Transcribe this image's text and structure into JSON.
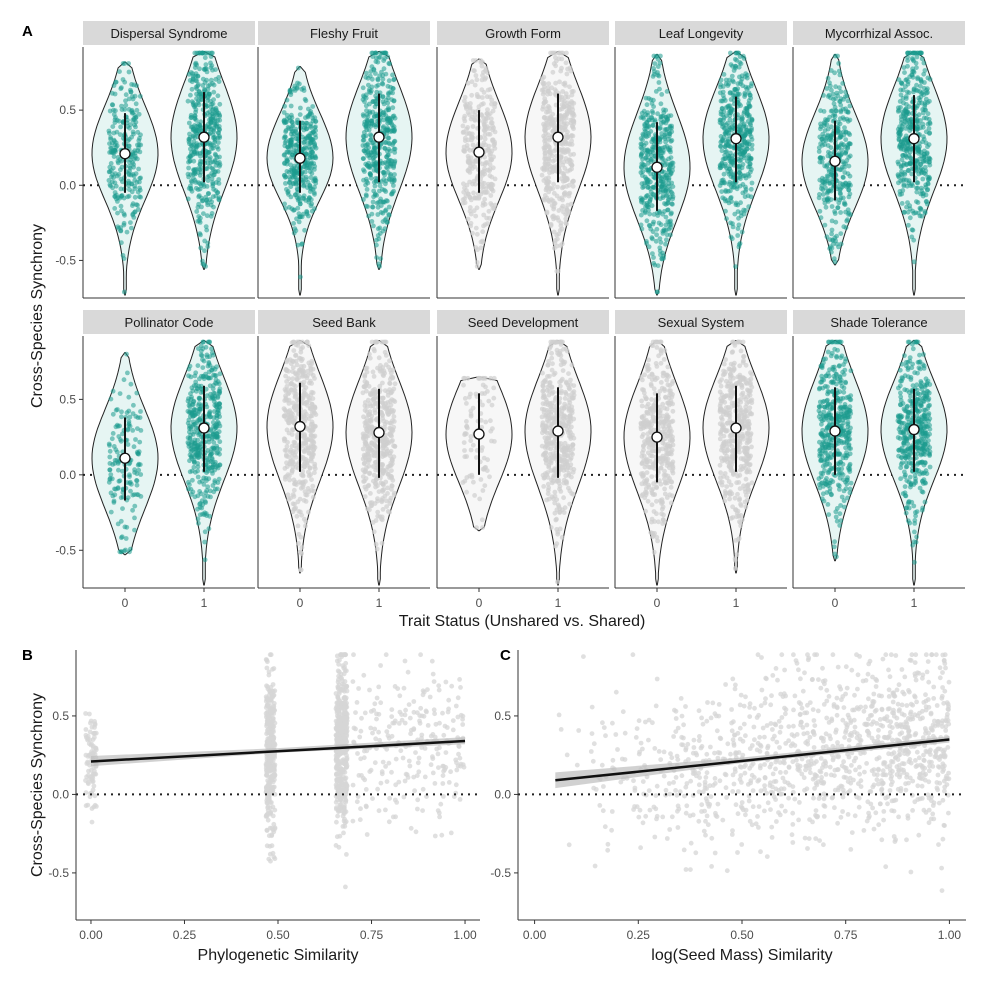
{
  "figure": {
    "panel_labels": [
      "A",
      "B",
      "C"
    ],
    "colors": {
      "shared_trait": "#1b9a8e",
      "neutral": "#d9d9d9",
      "violin_fill_colored": "#e6f5f3",
      "violin_fill_neutral": "#f7f7f7",
      "strip_bg": "#d9d9d9",
      "ribbon": "#bdbdbd"
    }
  },
  "chart_data": [
    {
      "id": "A",
      "type": "violin",
      "title": "",
      "xlabel": "Trait Status (Unshared vs. Shared)",
      "ylabel": "Cross-Species Synchrony",
      "ylim": [
        -0.75,
        0.92
      ],
      "yticks": [
        -0.5,
        0.0,
        0.5
      ],
      "ytick_labels": [
        "-0.5",
        "0.0",
        "0.5"
      ],
      "categories": [
        "0",
        "1"
      ],
      "reference_line": 0,
      "facets": [
        {
          "name": "Dispersal Syndrome",
          "colored": true,
          "groups": [
            {
              "status": "0",
              "n": 260,
              "median": 0.21,
              "lower": -0.05,
              "upper": 0.48,
              "min": -0.73,
              "max": 0.82
            },
            {
              "status": "1",
              "n": 1100,
              "median": 0.32,
              "lower": 0.02,
              "upper": 0.62,
              "min": -0.56,
              "max": 0.89
            }
          ]
        },
        {
          "name": "Fleshy Fruit",
          "colored": true,
          "groups": [
            {
              "status": "0",
              "n": 380,
              "median": 0.18,
              "lower": -0.05,
              "upper": 0.43,
              "min": -0.73,
              "max": 0.79
            },
            {
              "status": "1",
              "n": 1100,
              "median": 0.32,
              "lower": 0.02,
              "upper": 0.61,
              "min": -0.56,
              "max": 0.89
            }
          ]
        },
        {
          "name": "Growth Form",
          "colored": false,
          "groups": [
            {
              "status": "0",
              "n": 300,
              "median": 0.22,
              "lower": -0.05,
              "upper": 0.5,
              "min": -0.56,
              "max": 0.84
            },
            {
              "status": "1",
              "n": 1100,
              "median": 0.32,
              "lower": 0.02,
              "upper": 0.61,
              "min": -0.73,
              "max": 0.89
            }
          ]
        },
        {
          "name": "Leaf Longevity",
          "colored": true,
          "groups": [
            {
              "status": "0",
              "n": 450,
              "median": 0.12,
              "lower": -0.17,
              "upper": 0.42,
              "min": -0.73,
              "max": 0.87
            },
            {
              "status": "1",
              "n": 1100,
              "median": 0.31,
              "lower": 0.02,
              "upper": 0.59,
              "min": -0.73,
              "max": 0.89
            }
          ]
        },
        {
          "name": "Mycorrhizal Assoc.",
          "colored": true,
          "groups": [
            {
              "status": "0",
              "n": 330,
              "median": 0.16,
              "lower": -0.1,
              "upper": 0.43,
              "min": -0.53,
              "max": 0.87
            },
            {
              "status": "1",
              "n": 1100,
              "median": 0.31,
              "lower": 0.02,
              "upper": 0.6,
              "min": -0.73,
              "max": 0.89
            }
          ]
        },
        {
          "name": "Pollinator Code",
          "colored": true,
          "groups": [
            {
              "status": "0",
              "n": 150,
              "median": 0.11,
              "lower": -0.17,
              "upper": 0.38,
              "min": -0.53,
              "max": 0.81
            },
            {
              "status": "1",
              "n": 1150,
              "median": 0.31,
              "lower": 0.02,
              "upper": 0.59,
              "min": -0.73,
              "max": 0.89
            }
          ]
        },
        {
          "name": "Seed Bank",
          "colored": false,
          "groups": [
            {
              "status": "0",
              "n": 500,
              "median": 0.32,
              "lower": 0.02,
              "upper": 0.61,
              "min": -0.65,
              "max": 0.89
            },
            {
              "status": "1",
              "n": 800,
              "median": 0.28,
              "lower": -0.02,
              "upper": 0.57,
              "min": -0.73,
              "max": 0.89
            }
          ]
        },
        {
          "name": "Seed Development",
          "colored": false,
          "groups": [
            {
              "status": "0",
              "n": 90,
              "median": 0.27,
              "lower": 0.0,
              "upper": 0.54,
              "min": -0.37,
              "max": 0.65
            },
            {
              "status": "1",
              "n": 1100,
              "median": 0.29,
              "lower": -0.02,
              "upper": 0.58,
              "min": -0.73,
              "max": 0.89
            }
          ]
        },
        {
          "name": "Sexual System",
          "colored": false,
          "groups": [
            {
              "status": "0",
              "n": 400,
              "median": 0.25,
              "lower": -0.05,
              "upper": 0.54,
              "min": -0.73,
              "max": 0.89
            },
            {
              "status": "1",
              "n": 850,
              "median": 0.31,
              "lower": 0.02,
              "upper": 0.59,
              "min": -0.65,
              "max": 0.89
            }
          ]
        },
        {
          "name": "Shade Tolerance",
          "colored": true,
          "groups": [
            {
              "status": "0",
              "n": 900,
              "median": 0.29,
              "lower": 0.0,
              "upper": 0.58,
              "min": -0.57,
              "max": 0.89
            },
            {
              "status": "1",
              "n": 800,
              "median": 0.3,
              "lower": 0.02,
              "upper": 0.57,
              "min": -0.73,
              "max": 0.89
            }
          ]
        }
      ]
    },
    {
      "id": "B",
      "type": "scatter",
      "title": "",
      "xlabel": "Phylogenetic Similarity",
      "ylabel": "Cross-Species Synchrony",
      "xlim": [
        -0.04,
        1.04
      ],
      "ylim": [
        -0.8,
        0.92
      ],
      "xticks": [
        0.0,
        0.25,
        0.5,
        0.75,
        1.0
      ],
      "xtick_labels": [
        "0.00",
        "0.25",
        "0.50",
        "0.75",
        "1.00"
      ],
      "yticks": [
        -0.5,
        0.0,
        0.5
      ],
      "ytick_labels": [
        "-0.5",
        "0.0",
        "0.5"
      ],
      "reference_line": 0,
      "point_clusters": [
        {
          "x_center": 0.0,
          "x_spread": 0.015,
          "n": 90,
          "y_mean": 0.2,
          "y_sd": 0.18
        },
        {
          "x_center": 0.48,
          "x_spread": 0.012,
          "n": 350,
          "y_mean": 0.25,
          "y_sd": 0.27
        },
        {
          "x_center": 0.67,
          "x_spread": 0.015,
          "n": 900,
          "y_mean": 0.3,
          "y_sd": 0.27
        },
        {
          "x_center": 0.85,
          "x_spread": 0.15,
          "n": 250,
          "y_mean": 0.3,
          "y_sd": 0.25
        }
      ],
      "fit_line": {
        "x": [
          0.0,
          1.0
        ],
        "y": [
          0.21,
          0.34
        ]
      },
      "confidence_band": {
        "x": [
          0.0,
          0.5,
          1.0
        ],
        "lower": [
          0.18,
          0.265,
          0.32
        ],
        "upper": [
          0.245,
          0.295,
          0.365
        ]
      }
    },
    {
      "id": "C",
      "type": "scatter",
      "title": "",
      "xlabel": "log(Seed Mass) Similarity",
      "ylabel": "",
      "xlim": [
        -0.04,
        1.04
      ],
      "ylim": [
        -0.8,
        0.92
      ],
      "xticks": [
        0.0,
        0.25,
        0.5,
        0.75,
        1.0
      ],
      "xtick_labels": [
        "0.00",
        "0.25",
        "0.50",
        "0.75",
        "1.00"
      ],
      "yticks": [
        -0.5,
        0.0,
        0.5
      ],
      "ytick_labels": [
        "-0.5",
        "0.0",
        "0.5"
      ],
      "reference_line": 0,
      "point_cloud": {
        "x_min": 0.05,
        "x_max": 1.0,
        "n": 1400,
        "density": "increasing_with_x",
        "y_mean_at_min": 0.09,
        "y_mean_at_max": 0.35,
        "y_sd": 0.28
      },
      "fit_line": {
        "x": [
          0.05,
          1.0
        ],
        "y": [
          0.09,
          0.35
        ]
      },
      "confidence_band": {
        "x": [
          0.05,
          0.5,
          1.0
        ],
        "lower": [
          0.04,
          0.2,
          0.33
        ],
        "upper": [
          0.14,
          0.235,
          0.37
        ]
      }
    }
  ]
}
